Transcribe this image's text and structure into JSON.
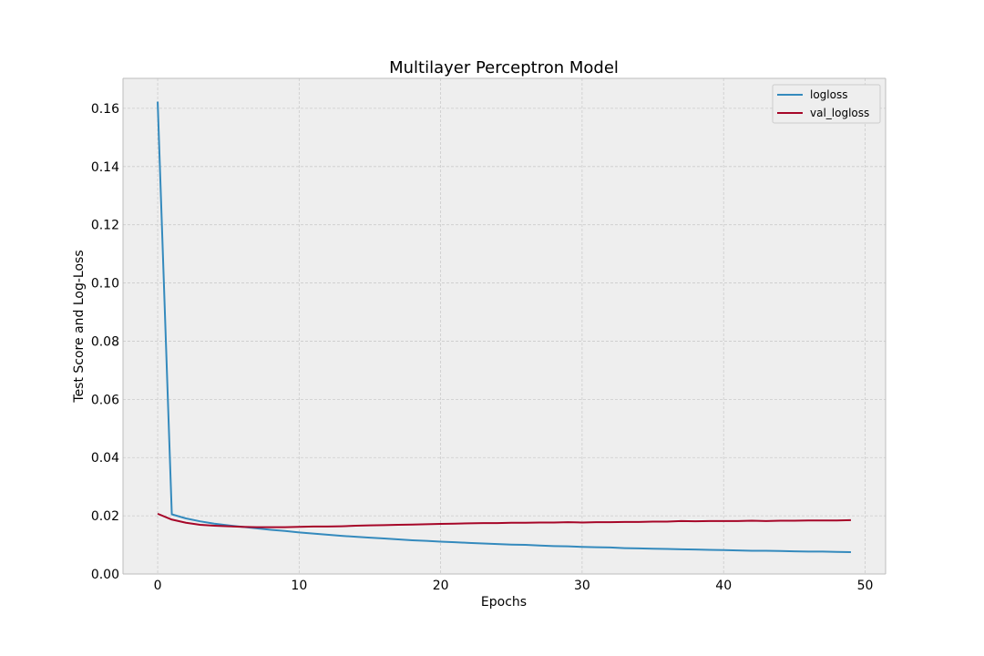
{
  "chart_data": {
    "type": "line",
    "title": "Multilayer Perceptron Model",
    "xlabel": "Epochs",
    "ylabel": "Test Score and Log-Loss",
    "xlim": [
      -2.45,
      51.45
    ],
    "ylim": [
      0,
      0.1703
    ],
    "xticks": [
      0,
      10,
      20,
      30,
      40,
      50
    ],
    "xtick_labels": [
      "0",
      "10",
      "20",
      "30",
      "40",
      "50"
    ],
    "yticks": [
      0,
      0.02,
      0.04,
      0.06,
      0.08,
      0.1,
      0.12,
      0.14,
      0.16
    ],
    "ytick_labels": [
      "0.00",
      "0.02",
      "0.04",
      "0.06",
      "0.08",
      "0.10",
      "0.12",
      "0.14",
      "0.16"
    ],
    "grid": true,
    "legend_position": "top-right",
    "x": [
      0,
      1,
      2,
      3,
      4,
      5,
      6,
      7,
      8,
      9,
      10,
      11,
      12,
      13,
      14,
      15,
      16,
      17,
      18,
      19,
      20,
      21,
      22,
      23,
      24,
      25,
      26,
      27,
      28,
      29,
      30,
      31,
      32,
      33,
      34,
      35,
      36,
      37,
      38,
      39,
      40,
      41,
      42,
      43,
      44,
      45,
      46,
      47,
      48,
      49
    ],
    "series": [
      {
        "name": "logloss",
        "color": "#348abd",
        "values": [
          0.1623,
          0.0205,
          0.0191,
          0.0181,
          0.0173,
          0.0167,
          0.0162,
          0.0157,
          0.0152,
          0.0148,
          0.0143,
          0.0139,
          0.0135,
          0.0131,
          0.0128,
          0.0125,
          0.0122,
          0.0119,
          0.0116,
          0.0114,
          0.0111,
          0.0109,
          0.0107,
          0.0105,
          0.0103,
          0.0101,
          0.01,
          0.0098,
          0.0096,
          0.0095,
          0.0093,
          0.0092,
          0.0091,
          0.0089,
          0.0088,
          0.0087,
          0.0086,
          0.0085,
          0.0084,
          0.0083,
          0.0082,
          0.0081,
          0.008,
          0.008,
          0.0079,
          0.0078,
          0.0077,
          0.0077,
          0.0076,
          0.0075
        ]
      },
      {
        "name": "val_logloss",
        "color": "#a60628",
        "values": [
          0.0207,
          0.0187,
          0.0176,
          0.0169,
          0.0166,
          0.0164,
          0.0162,
          0.0161,
          0.0161,
          0.0161,
          0.0162,
          0.0163,
          0.0163,
          0.0164,
          0.0166,
          0.0167,
          0.0168,
          0.0169,
          0.017,
          0.0171,
          0.0172,
          0.0173,
          0.0174,
          0.0175,
          0.0175,
          0.0176,
          0.0176,
          0.0177,
          0.0177,
          0.0178,
          0.0177,
          0.0178,
          0.0178,
          0.0179,
          0.0179,
          0.018,
          0.018,
          0.0182,
          0.0181,
          0.0182,
          0.0182,
          0.0182,
          0.0183,
          0.0182,
          0.0183,
          0.0183,
          0.0184,
          0.0184,
          0.0184,
          0.0185
        ]
      }
    ]
  }
}
